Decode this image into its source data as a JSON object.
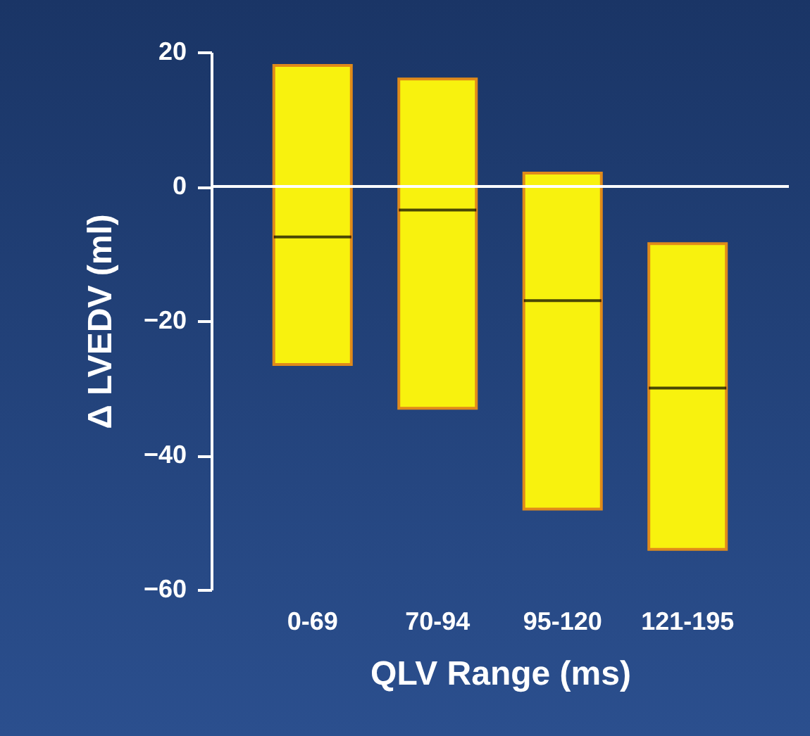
{
  "chart_data": {
    "type": "box",
    "xlabel": "QLV Range (ms)",
    "ylabel": "Δ LVEDV (ml)",
    "categories": [
      "0-69",
      "70-94",
      "95-120",
      "121-195"
    ],
    "boxes": [
      {
        "low": -26.5,
        "q1": -26.5,
        "median": -7.5,
        "q3": 18,
        "high": 18
      },
      {
        "low": -33,
        "q1": -33,
        "median": -3.5,
        "q3": 16,
        "high": 16
      },
      {
        "low": -48,
        "q1": -48,
        "median": -17,
        "q3": 2,
        "high": 2
      },
      {
        "low": -54,
        "q1": -54,
        "median": -30,
        "q3": -8.5,
        "high": -8.5
      }
    ],
    "colors": [
      "#f8f20e",
      "#f8f20e",
      "#f8f20e",
      "#f8f20e"
    ],
    "ylim": [
      -60,
      20
    ],
    "yticks": [
      -60,
      -40,
      -20,
      0,
      20
    ],
    "ref_lines": [
      {
        "axis": "y",
        "value": 0,
        "color": "#ffffff"
      }
    ]
  }
}
